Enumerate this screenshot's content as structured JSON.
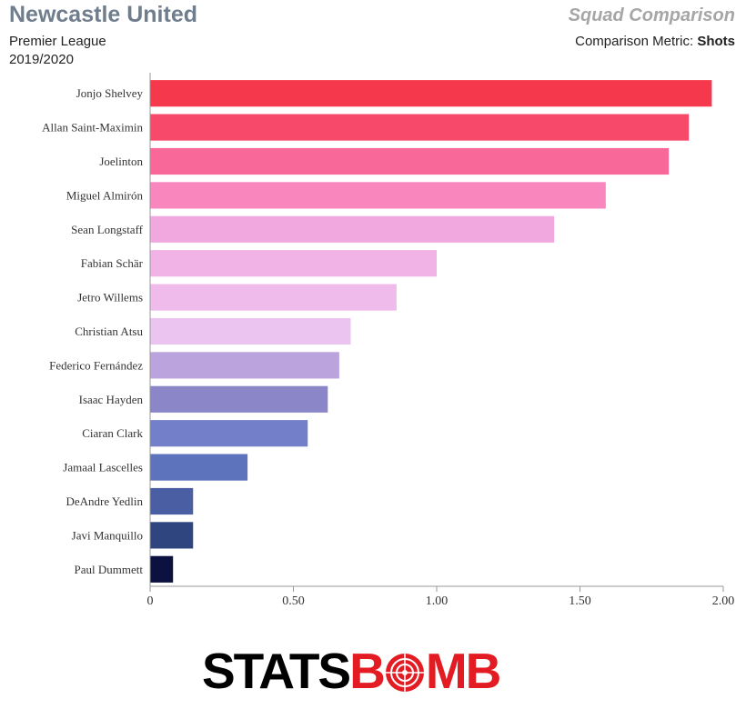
{
  "header": {
    "team": "Newcastle United",
    "league": "Premier League",
    "season": "2019/2020",
    "report_title": "Squad Comparison",
    "metric_label": "Comparison Metric:",
    "metric_name": "Shots"
  },
  "logo": {
    "text_left": "STATS",
    "text_right_pre": "B",
    "text_right_post": "MB"
  },
  "chart_data": {
    "type": "bar",
    "orientation": "horizontal",
    "categories": [
      "Jonjo Shelvey",
      "Allan Saint-Maximin",
      "Joelinton",
      "Miguel Almirón",
      "Sean Longstaff",
      "Fabian Schär",
      "Jetro Willems",
      "Christian Atsu",
      "Federico Fernández",
      "Isaac Hayden",
      "Ciaran Clark",
      "Jamaal Lascelles",
      "DeAndre Yedlin",
      "Javi Manquillo",
      "Paul Dummett"
    ],
    "values": [
      1.96,
      1.88,
      1.81,
      1.59,
      1.41,
      1.0,
      0.86,
      0.7,
      0.66,
      0.62,
      0.55,
      0.34,
      0.15,
      0.15,
      0.08
    ],
    "colors": [
      "#f5384b",
      "#f74a6b",
      "#f8699a",
      "#f986bd",
      "#f0a8de",
      "#f1b3e6",
      "#efbbea",
      "#ebc4ef",
      "#bba3de",
      "#8b86c7",
      "#737fc8",
      "#5d73bb",
      "#4a5ea4",
      "#2f4580",
      "#0c1240"
    ],
    "xlim": [
      0,
      2.0
    ],
    "xticks": [
      "0",
      "0.50",
      "1.00",
      "1.50",
      "2.00"
    ],
    "xtick_values": [
      0,
      0.5,
      1.0,
      1.5,
      2.0
    ]
  }
}
